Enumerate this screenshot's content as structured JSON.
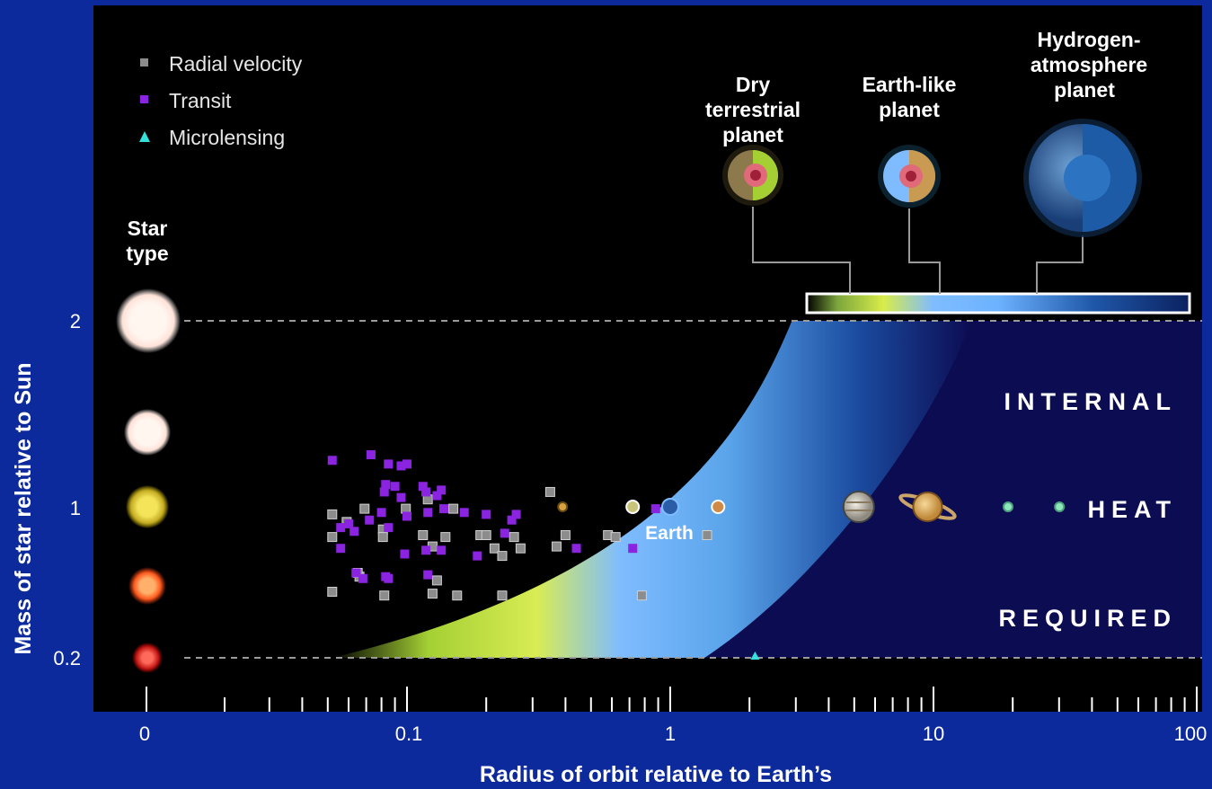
{
  "colors": {
    "frame": "#0d2a9c",
    "background": "#000000",
    "internal_heat_region": "#0c0c52",
    "radial_velocity": "#8c8c8c",
    "transit": "#8a24e0",
    "microlensing": "#35e0dc",
    "dry_terrestrial": "#a4d034",
    "earth_like": "#7fbcff",
    "hydrogen_atmosphere": "#174a98"
  },
  "legend": {
    "radial_velocity": "Radial velocity",
    "transit": "Transit",
    "microlensing": "Microlensing"
  },
  "planet_types": {
    "dry": "Dry terrestrial planet",
    "earth_like": "Earth-like planet",
    "hydrogen": "Hydrogen-atmosphere planet"
  },
  "region_text": [
    "INTERNAL",
    "HEAT",
    "REQUIRED"
  ],
  "star_type_label": "Star type",
  "earth_label": "Earth",
  "chart_data": {
    "type": "scatter",
    "xlabel": "Radius of orbit relative to Earth’s",
    "ylabel": "Mass of star relative to Sun",
    "xscale": "log",
    "xlim": [
      0.03,
      100
    ],
    "ylim": [
      0.2,
      2
    ],
    "x_ticks": [
      "0",
      "0.1",
      "1",
      "10",
      "100"
    ],
    "y_ticks": [
      "0.2",
      "1",
      "2"
    ],
    "grid": false,
    "legend_position": "top-left",
    "series": [
      {
        "name": "Radial velocity",
        "marker": "square",
        "points": [
          [
            0.052,
            0.96
          ],
          [
            0.059,
            0.92
          ],
          [
            0.069,
            0.99
          ],
          [
            0.052,
            0.84
          ],
          [
            0.066,
            0.63
          ],
          [
            0.081,
            0.88
          ],
          [
            0.099,
            0.99
          ],
          [
            0.081,
            0.84
          ],
          [
            0.115,
            0.85
          ],
          [
            0.125,
            0.79
          ],
          [
            0.14,
            0.84
          ],
          [
            0.13,
            0.61
          ],
          [
            0.125,
            0.54
          ],
          [
            0.155,
            0.53
          ],
          [
            0.082,
            0.53
          ],
          [
            0.052,
            0.55
          ],
          [
            0.065,
            0.65
          ],
          [
            0.19,
            0.85
          ],
          [
            0.2,
            0.85
          ],
          [
            0.215,
            0.78
          ],
          [
            0.23,
            0.53
          ],
          [
            0.255,
            0.84
          ],
          [
            0.27,
            0.78
          ],
          [
            0.35,
            1.08
          ],
          [
            0.4,
            0.85
          ],
          [
            0.37,
            0.79
          ],
          [
            0.58,
            0.85
          ],
          [
            0.62,
            0.84
          ],
          [
            0.78,
            0.53
          ],
          [
            1.38,
            0.85
          ],
          [
            0.15,
            0.99
          ],
          [
            0.12,
            1.04
          ],
          [
            0.23,
            0.74
          ]
        ]
      },
      {
        "name": "Transit",
        "marker": "square",
        "points": [
          [
            0.052,
            1.25
          ],
          [
            0.073,
            1.28
          ],
          [
            0.085,
            1.23
          ],
          [
            0.095,
            1.22
          ],
          [
            0.1,
            1.23
          ],
          [
            0.083,
            1.12
          ],
          [
            0.09,
            1.11
          ],
          [
            0.082,
            1.08
          ],
          [
            0.095,
            1.05
          ],
          [
            0.115,
            1.11
          ],
          [
            0.118,
            1.08
          ],
          [
            0.13,
            1.06
          ],
          [
            0.135,
            1.09
          ],
          [
            0.138,
            0.99
          ],
          [
            0.12,
            0.97
          ],
          [
            0.08,
            0.97
          ],
          [
            0.085,
            0.89
          ],
          [
            0.06,
            0.91
          ],
          [
            0.063,
            0.87
          ],
          [
            0.056,
            0.89
          ],
          [
            0.072,
            0.93
          ],
          [
            0.1,
            0.95
          ],
          [
            0.165,
            0.97
          ],
          [
            0.2,
            0.96
          ],
          [
            0.25,
            0.93
          ],
          [
            0.26,
            0.96
          ],
          [
            0.235,
            0.86
          ],
          [
            0.056,
            0.78
          ],
          [
            0.098,
            0.75
          ],
          [
            0.118,
            0.77
          ],
          [
            0.135,
            0.77
          ],
          [
            0.185,
            0.74
          ],
          [
            0.064,
            0.65
          ],
          [
            0.068,
            0.62
          ],
          [
            0.083,
            0.63
          ],
          [
            0.085,
            0.62
          ],
          [
            0.12,
            0.64
          ],
          [
            0.44,
            0.78
          ],
          [
            0.72,
            0.78
          ],
          [
            0.88,
            0.99
          ]
        ]
      },
      {
        "name": "Microlensing",
        "marker": "triangle",
        "points": [
          [
            2.1,
            0.2
          ]
        ]
      }
    ],
    "solar_system": [
      {
        "name": "Mercury",
        "x": 0.39,
        "y": 1
      },
      {
        "name": "Venus",
        "x": 0.72,
        "y": 1
      },
      {
        "name": "Earth",
        "x": 1.0,
        "y": 1
      },
      {
        "name": "Mars",
        "x": 1.52,
        "y": 1
      },
      {
        "name": "Jupiter",
        "x": 5.2,
        "y": 1
      },
      {
        "name": "Saturn",
        "x": 9.5,
        "y": 1
      },
      {
        "name": "Uranus",
        "x": 19.2,
        "y": 1
      },
      {
        "name": "Neptune",
        "x": 30.1,
        "y": 1
      }
    ],
    "star_markers": [
      {
        "y": 2,
        "color": "#fff1ea"
      },
      {
        "y": 1.45,
        "color": "#fff1ea"
      },
      {
        "y": 1,
        "color": "#f3e45a"
      },
      {
        "y": 0.6,
        "color": "#ff7a2a"
      },
      {
        "y": 0.2,
        "color": "#d82a22"
      }
    ]
  }
}
